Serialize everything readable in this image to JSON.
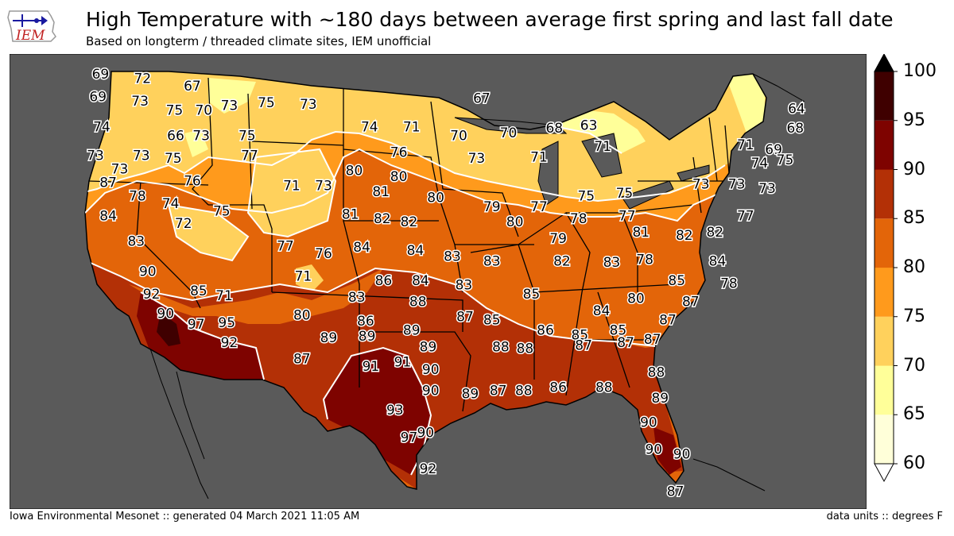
{
  "title": "High Temperature with ~180 days between average first spring and last fall date",
  "subtitle": "Based on longterm / threaded climate sites, IEM unofficial",
  "footer_left": "Iowa Environmental Mesonet :: generated 04 March 2021 11:05 AM",
  "footer_right": "data units :: degrees F",
  "logo_text": "IEM",
  "colors": {
    "background": "#5a5a5a",
    "bins": [
      "#ffffd9",
      "#ffff99",
      "#ffd15c",
      "#ff9a1c",
      "#e36509",
      "#b33006",
      "#7e0300",
      "#3f0000",
      "#000000"
    ]
  },
  "colorbar": {
    "levels": [
      60,
      65,
      70,
      75,
      80,
      85,
      90,
      95,
      100
    ],
    "tick_labels": [
      "60",
      "65",
      "70",
      "75",
      "80",
      "85",
      "90",
      "95",
      "100"
    ],
    "extend": "both"
  },
  "stations": [
    {
      "v": "69",
      "lon": -124.1,
      "lat": 48.4
    },
    {
      "v": "72",
      "lon": -120.8,
      "lat": 48.1
    },
    {
      "v": "67",
      "lon": -116.9,
      "lat": 47.6
    },
    {
      "v": "69",
      "lon": -124.3,
      "lat": 46.9
    },
    {
      "v": "73",
      "lon": -121.0,
      "lat": 46.6
    },
    {
      "v": "75",
      "lon": -118.3,
      "lat": 46.0
    },
    {
      "v": "70",
      "lon": -116.0,
      "lat": 46.0
    },
    {
      "v": "73",
      "lon": -114.0,
      "lat": 46.3
    },
    {
      "v": "75",
      "lon": -111.1,
      "lat": 46.5
    },
    {
      "v": "73",
      "lon": -107.8,
      "lat": 46.4
    },
    {
      "v": "67",
      "lon": -94.2,
      "lat": 46.8
    },
    {
      "v": "64",
      "lon": -69.5,
      "lat": 46.1
    },
    {
      "v": "74",
      "lon": -124.0,
      "lat": 44.9
    },
    {
      "v": "66",
      "lon": -118.2,
      "lat": 44.3
    },
    {
      "v": "73",
      "lon": -116.2,
      "lat": 44.3
    },
    {
      "v": "75",
      "lon": -112.6,
      "lat": 44.3
    },
    {
      "v": "74",
      "lon": -103.0,
      "lat": 44.9
    },
    {
      "v": "71",
      "lon": -99.7,
      "lat": 44.9
    },
    {
      "v": "70",
      "lon": -96.0,
      "lat": 44.3
    },
    {
      "v": "70",
      "lon": -92.1,
      "lat": 44.5
    },
    {
      "v": "68",
      "lon": -88.5,
      "lat": 44.8
    },
    {
      "v": "63",
      "lon": -85.8,
      "lat": 45.0
    },
    {
      "v": "68",
      "lon": -69.6,
      "lat": 44.8
    },
    {
      "v": "73",
      "lon": -124.5,
      "lat": 43.0
    },
    {
      "v": "73",
      "lon": -120.9,
      "lat": 43.0
    },
    {
      "v": "75",
      "lon": -118.4,
      "lat": 42.8
    },
    {
      "v": "77",
      "lon": -112.4,
      "lat": 43.0
    },
    {
      "v": "76",
      "lon": -100.7,
      "lat": 43.2
    },
    {
      "v": "73",
      "lon": -94.6,
      "lat": 42.8
    },
    {
      "v": "71",
      "lon": -89.7,
      "lat": 42.9
    },
    {
      "v": "71",
      "lon": -84.7,
      "lat": 43.6
    },
    {
      "v": "71",
      "lon": -73.5,
      "lat": 43.7
    },
    {
      "v": "69",
      "lon": -71.3,
      "lat": 43.4
    },
    {
      "v": "74",
      "lon": -72.4,
      "lat": 42.5
    },
    {
      "v": "75",
      "lon": -70.4,
      "lat": 42.7
    },
    {
      "v": "73",
      "lon": -122.6,
      "lat": 42.1
    },
    {
      "v": "87",
      "lon": -123.5,
      "lat": 41.2
    },
    {
      "v": "80",
      "lon": -104.2,
      "lat": 42.0
    },
    {
      "v": "80",
      "lon": -100.7,
      "lat": 41.6
    },
    {
      "v": "76",
      "lon": -116.9,
      "lat": 41.3
    },
    {
      "v": "71",
      "lon": -109.1,
      "lat": 41.0
    },
    {
      "v": "73",
      "lon": -106.6,
      "lat": 41.0
    },
    {
      "v": "81",
      "lon": -102.1,
      "lat": 40.6
    },
    {
      "v": "80",
      "lon": -97.8,
      "lat": 40.2
    },
    {
      "v": "75",
      "lon": -86.0,
      "lat": 40.3
    },
    {
      "v": "75",
      "lon": -83.0,
      "lat": 40.5
    },
    {
      "v": "73",
      "lon": -77.0,
      "lat": 41.1
    },
    {
      "v": "73",
      "lon": -74.2,
      "lat": 41.1
    },
    {
      "v": "73",
      "lon": -71.8,
      "lat": 40.8
    },
    {
      "v": "78",
      "lon": -121.2,
      "lat": 40.3
    },
    {
      "v": "74",
      "lon": -118.6,
      "lat": 39.8
    },
    {
      "v": "79",
      "lon": -93.4,
      "lat": 39.6
    },
    {
      "v": "77",
      "lon": -89.7,
      "lat": 39.6
    },
    {
      "v": "84",
      "lon": -123.5,
      "lat": 39.0
    },
    {
      "v": "72",
      "lon": -117.6,
      "lat": 38.5
    },
    {
      "v": "75",
      "lon": -114.6,
      "lat": 39.3
    },
    {
      "v": "81",
      "lon": -104.5,
      "lat": 39.1
    },
    {
      "v": "82",
      "lon": -102.0,
      "lat": 38.8
    },
    {
      "v": "82",
      "lon": -99.9,
      "lat": 38.6
    },
    {
      "v": "80",
      "lon": -91.6,
      "lat": 38.6
    },
    {
      "v": "78",
      "lon": -86.6,
      "lat": 38.8
    },
    {
      "v": "77",
      "lon": -82.8,
      "lat": 39.0
    },
    {
      "v": "77",
      "lon": -73.5,
      "lat": 39.0
    },
    {
      "v": "83",
      "lon": -121.3,
      "lat": 37.3
    },
    {
      "v": "77",
      "lon": -109.6,
      "lat": 37.0
    },
    {
      "v": "84",
      "lon": -103.6,
      "lat": 36.9
    },
    {
      "v": "84",
      "lon": -99.4,
      "lat": 36.7
    },
    {
      "v": "79",
      "lon": -88.2,
      "lat": 37.5
    },
    {
      "v": "81",
      "lon": -81.7,
      "lat": 37.9
    },
    {
      "v": "82",
      "lon": -78.3,
      "lat": 37.7
    },
    {
      "v": "82",
      "lon": -75.9,
      "lat": 37.9
    },
    {
      "v": "76",
      "lon": -106.6,
      "lat": 36.5
    },
    {
      "v": "83",
      "lon": -96.5,
      "lat": 36.3
    },
    {
      "v": "83",
      "lon": -93.4,
      "lat": 36.0
    },
    {
      "v": "82",
      "lon": -87.9,
      "lat": 36.0
    },
    {
      "v": "83",
      "lon": -84.0,
      "lat": 35.9
    },
    {
      "v": "78",
      "lon": -81.4,
      "lat": 36.1
    },
    {
      "v": "84",
      "lon": -75.7,
      "lat": 36.0
    },
    {
      "v": "90",
      "lon": -120.4,
      "lat": 35.3
    },
    {
      "v": "71",
      "lon": -108.2,
      "lat": 35.0
    },
    {
      "v": "86",
      "lon": -101.9,
      "lat": 34.7
    },
    {
      "v": "84",
      "lon": -99.0,
      "lat": 34.7
    },
    {
      "v": "83",
      "lon": -95.6,
      "lat": 34.4
    },
    {
      "v": "85",
      "lon": -78.9,
      "lat": 34.7
    },
    {
      "v": "78",
      "lon": -74.8,
      "lat": 34.5
    },
    {
      "v": "92",
      "lon": -120.1,
      "lat": 33.8
    },
    {
      "v": "85",
      "lon": -116.4,
      "lat": 34.0
    },
    {
      "v": "71",
      "lon": -114.4,
      "lat": 33.7
    },
    {
      "v": "83",
      "lon": -104.0,
      "lat": 33.6
    },
    {
      "v": "88",
      "lon": -99.2,
      "lat": 33.3
    },
    {
      "v": "85",
      "lon": -90.3,
      "lat": 33.8
    },
    {
      "v": "80",
      "lon": -82.1,
      "lat": 33.5
    },
    {
      "v": "87",
      "lon": -77.8,
      "lat": 33.3
    },
    {
      "v": "90",
      "lon": -119.0,
      "lat": 32.5
    },
    {
      "v": "80",
      "lon": -108.3,
      "lat": 32.4
    },
    {
      "v": "86",
      "lon": -103.3,
      "lat": 32.0
    },
    {
      "v": "87",
      "lon": -95.5,
      "lat": 32.3
    },
    {
      "v": "85",
      "lon": -93.4,
      "lat": 32.1
    },
    {
      "v": "84",
      "lon": -84.8,
      "lat": 32.7
    },
    {
      "v": "87",
      "lon": -79.6,
      "lat": 32.1
    },
    {
      "v": "97",
      "lon": -116.6,
      "lat": 31.8
    },
    {
      "v": "95",
      "lon": -114.2,
      "lat": 31.9
    },
    {
      "v": "89",
      "lon": -106.2,
      "lat": 30.9
    },
    {
      "v": "89",
      "lon": -103.2,
      "lat": 31.0
    },
    {
      "v": "89",
      "lon": -99.7,
      "lat": 31.4
    },
    {
      "v": "86",
      "lon": -89.2,
      "lat": 31.4
    },
    {
      "v": "85",
      "lon": -86.5,
      "lat": 31.1
    },
    {
      "v": "85",
      "lon": -83.5,
      "lat": 31.4
    },
    {
      "v": "92",
      "lon": -114.0,
      "lat": 30.6
    },
    {
      "v": "89",
      "lon": -98.4,
      "lat": 30.3
    },
    {
      "v": "88",
      "lon": -92.7,
      "lat": 30.3
    },
    {
      "v": "88",
      "lon": -90.8,
      "lat": 30.2
    },
    {
      "v": "87",
      "lon": -86.2,
      "lat": 30.4
    },
    {
      "v": "87",
      "lon": -82.9,
      "lat": 30.6
    },
    {
      "v": "87",
      "lon": -80.8,
      "lat": 30.8
    },
    {
      "v": "87",
      "lon": -108.3,
      "lat": 29.5
    },
    {
      "v": "91",
      "lon": -102.9,
      "lat": 29.0
    },
    {
      "v": "91",
      "lon": -100.4,
      "lat": 29.3
    },
    {
      "v": "90",
      "lon": -98.2,
      "lat": 28.8
    },
    {
      "v": "88",
      "lon": -80.5,
      "lat": 28.6
    },
    {
      "v": "90",
      "lon": -98.2,
      "lat": 27.4
    },
    {
      "v": "89",
      "lon": -95.1,
      "lat": 27.2
    },
    {
      "v": "87",
      "lon": -92.9,
      "lat": 27.4
    },
    {
      "v": "88",
      "lon": -90.9,
      "lat": 27.4
    },
    {
      "v": "86",
      "lon": -88.2,
      "lat": 27.6
    },
    {
      "v": "88",
      "lon": -84.6,
      "lat": 27.6
    },
    {
      "v": "89",
      "lon": -80.2,
      "lat": 26.9
    },
    {
      "v": "93",
      "lon": -101.0,
      "lat": 26.1
    },
    {
      "v": "90",
      "lon": -81.1,
      "lat": 25.3
    },
    {
      "v": "97",
      "lon": -99.9,
      "lat": 24.3
    },
    {
      "v": "90",
      "lon": -98.6,
      "lat": 24.6
    },
    {
      "v": "90",
      "lon": -80.7,
      "lat": 23.5
    },
    {
      "v": "90",
      "lon": -78.5,
      "lat": 23.2
    },
    {
      "v": "92",
      "lon": -98.4,
      "lat": 22.2
    },
    {
      "v": "87",
      "lon": -79.0,
      "lat": 20.7
    }
  ]
}
